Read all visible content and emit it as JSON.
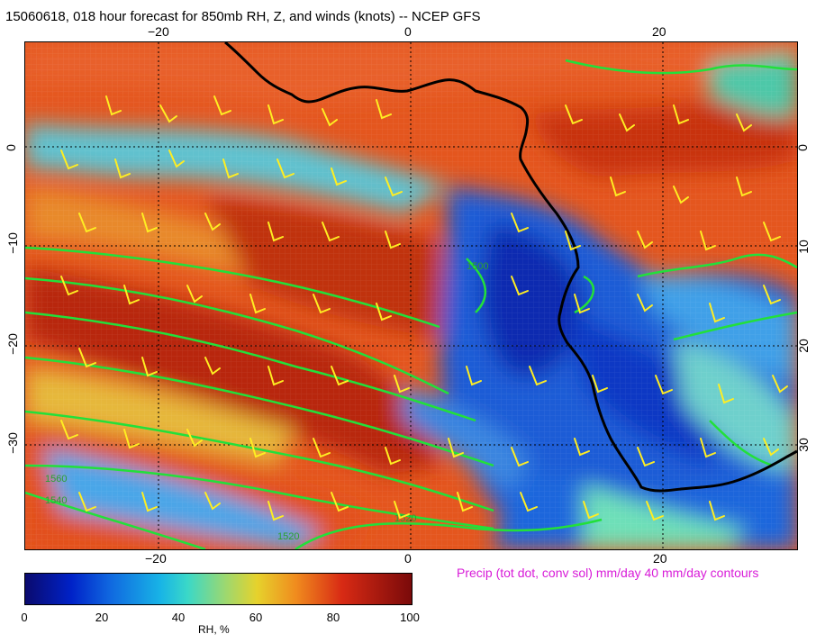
{
  "title": "15060618, 018 hour forecast for 850mb RH, Z, and winds (knots)  -- NCEP GFS",
  "map": {
    "lon_ticks_top": [
      "−20",
      "0",
      "20"
    ],
    "lon_ticks_bottom": [
      "−20",
      "0",
      "20"
    ],
    "lat_ticks_left": [
      "0",
      "−10",
      "−20",
      "−30"
    ],
    "lat_ticks_right": [
      "0",
      "10",
      "20",
      "30"
    ],
    "contour_labels": [
      "1560",
      "1540",
      "1520",
      "1500",
      "1520"
    ],
    "colors": {
      "coastline": "#000000",
      "height_contours": "#22e03a",
      "wind_barbs": "#ffee22",
      "gridlines": "#000000"
    }
  },
  "precip_note": "Precip (tot dot, conv sol) mm/day 40 mm/day contours",
  "colorbar": {
    "ticks": [
      "0",
      "20",
      "40",
      "60",
      "80",
      "100"
    ],
    "tick_values": [
      0,
      20,
      40,
      60,
      80,
      100
    ],
    "label": "RH, %"
  }
}
